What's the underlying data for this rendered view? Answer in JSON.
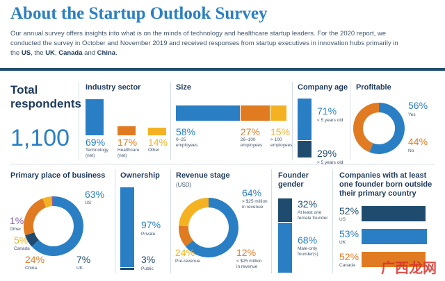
{
  "header": {
    "title": "About the Startup Outlook Survey",
    "intro_1": "Our annual survey offers insights into what is on the minds of technology and healthcare startup leaders. For the 2020 report, we conducted the survey in October and November 2019 and received responses from startup executives in innovation hubs primarily in the ",
    "us": "US",
    "sep1": ", the ",
    "uk": "UK",
    "sep2": ", ",
    "canada": "Canada",
    "sep3": " and ",
    "china": "China",
    "end": "."
  },
  "total": {
    "label_1": "Total",
    "label_2": "respondents",
    "value": "1,100"
  },
  "colors": {
    "blue": "#2a7fc4",
    "orange": "#e07b22",
    "yellow": "#f4b222",
    "navy": "#1f4c6e",
    "purple": "#8e5ba6",
    "light": "#f5cf7a"
  },
  "watermark": "广西龙网",
  "chart_data": [
    {
      "type": "bar",
      "title": "Industry sector",
      "categories": [
        "Technology (net)",
        "Healthcare (net)",
        "Other"
      ],
      "values": [
        69,
        17,
        14
      ],
      "labels": [
        "69%",
        "17%",
        "14%"
      ],
      "cap_lines": [
        [
          "Technology",
          "(net)"
        ],
        [
          "Healthcare",
          "(net)"
        ],
        [
          "Other"
        ]
      ]
    },
    {
      "type": "bar",
      "title": "Size",
      "categories": [
        "0–25 employees",
        "26–100 employees",
        "> 100 employees"
      ],
      "values": [
        58,
        27,
        15
      ],
      "labels": [
        "58%",
        "27%",
        "15%"
      ],
      "cap_lines": [
        [
          "0–25",
          "employees"
        ],
        [
          "26–100",
          "employees"
        ],
        [
          "> 100",
          "employees"
        ]
      ]
    },
    {
      "type": "bar",
      "title": "Company age",
      "categories": [
        "< 5 years old",
        "> 5 years old"
      ],
      "values": [
        71,
        29
      ],
      "labels": [
        "71%",
        "29%"
      ]
    },
    {
      "type": "pie",
      "title": "Profitable",
      "categories": [
        "Yes",
        "No"
      ],
      "values": [
        56,
        44
      ],
      "labels": [
        "56%",
        "44%"
      ]
    },
    {
      "type": "pie",
      "title": "Primary place of business",
      "categories": [
        "US",
        "UK",
        "China",
        "Canada",
        "Other"
      ],
      "values": [
        63,
        7,
        24,
        5,
        1
      ],
      "labels": [
        "63%",
        "7%",
        "24%",
        "5%",
        "1%"
      ]
    },
    {
      "type": "bar",
      "title": "Ownership",
      "categories": [
        "Private",
        "Public"
      ],
      "values": [
        97,
        3
      ],
      "labels": [
        "97%",
        "3%"
      ]
    },
    {
      "type": "pie",
      "title": "Revenue stage",
      "subtitle": "(USD)",
      "categories": [
        "> $25 million in revenue",
        "< $25 million in revenue",
        "Pre-revenue"
      ],
      "values": [
        64,
        12,
        24
      ],
      "labels": [
        "64%",
        "12%",
        "24%"
      ],
      "cap_lines": [
        [
          "> $25 million",
          "in revenue"
        ],
        [
          "< $25 million",
          "in revenue"
        ],
        [
          "Pre-revenue"
        ]
      ]
    },
    {
      "type": "bar",
      "title": "Founder gender",
      "categories": [
        "At least one female founder",
        "Male-only founder(s)"
      ],
      "values": [
        32,
        68
      ],
      "labels": [
        "32%",
        "68%"
      ],
      "cap_lines": [
        [
          "At least one",
          "female founder"
        ],
        [
          "Male-only",
          "founder(s)"
        ]
      ]
    },
    {
      "type": "bar",
      "title": "Companies with at least one founder born outside their primary country",
      "categories": [
        "US",
        "UK",
        "Canada"
      ],
      "values": [
        52,
        53,
        52
      ],
      "labels": [
        "52%",
        "53%",
        "52%"
      ]
    }
  ]
}
